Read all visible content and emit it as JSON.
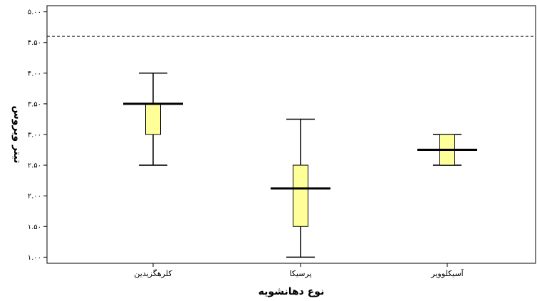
{
  "chart_data": {
    "type": "box",
    "title": "",
    "xlabel": "نوع دهانشویه",
    "ylabel": "تیتر ویروس",
    "ylim": [
      0.9,
      5.1
    ],
    "yticks": [
      1.0,
      1.5,
      2.0,
      2.5,
      3.0,
      3.5,
      4.0,
      4.5,
      5.0
    ],
    "ytick_labels": [
      "۱.۰۰",
      "۱.۵۰",
      "۲.۰۰",
      "۲.۵۰",
      "۳.۰۰",
      "۳.۵۰",
      "۴.۰۰",
      "۴.۵۰",
      "۵.۰۰"
    ],
    "categories": [
      "کلرهگزیدین",
      "پرسیکا",
      "آسیکلوویر"
    ],
    "boxes": [
      {
        "category": "کلرهگزیدین",
        "whisker_low": 2.5,
        "q1": 3.0,
        "median": 3.5,
        "q3": 3.5,
        "whisker_high": 4.0
      },
      {
        "category": "پرسیکا",
        "whisker_low": 1.0,
        "q1": 1.5,
        "median": 2.12,
        "q3": 2.5,
        "whisker_high": 3.25
      },
      {
        "category": "آسیکلوویر",
        "whisker_low": 2.5,
        "q1": 2.5,
        "median": 2.75,
        "q3": 3.0,
        "whisker_high": 3.0
      }
    ],
    "reference_line": 4.6,
    "box_color": "#ffff99",
    "grid": false,
    "legend": "none"
  }
}
